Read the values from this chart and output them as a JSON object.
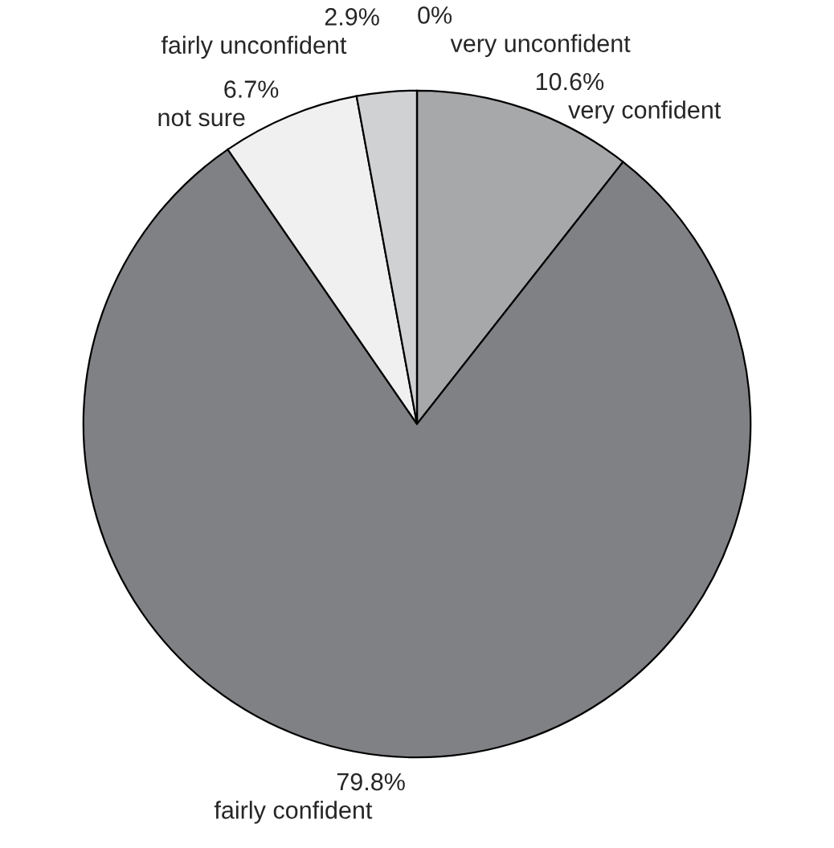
{
  "chart_data": {
    "type": "pie",
    "categories": [
      "very confident",
      "fairly confident",
      "not sure",
      "fairly unconfident",
      "very unconfident"
    ],
    "values": [
      10.6,
      79.8,
      6.7,
      2.9,
      0
    ],
    "value_labels": [
      "10.6%",
      "79.8%",
      "6.7%",
      "2.9%",
      "0%"
    ],
    "colors": [
      "#a7a8aa",
      "#808184",
      "#f0f0f0",
      "#d0d1d3",
      "#b0b0b0"
    ],
    "legend": false
  }
}
